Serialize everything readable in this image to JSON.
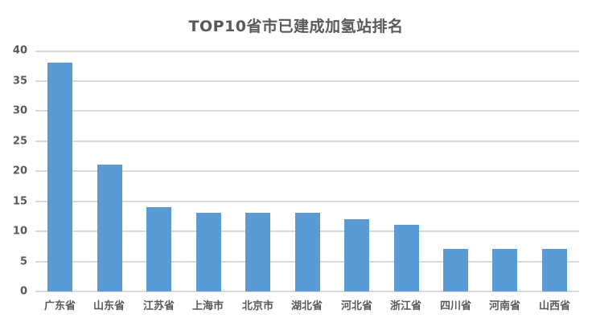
{
  "chart_data": {
    "type": "bar",
    "title": "TOP10省市已建成加氢站排名",
    "categories": [
      "广东省",
      "山东省",
      "江苏省",
      "上海市",
      "北京市",
      "湖北省",
      "河北省",
      "浙江省",
      "四川省",
      "河南省",
      "山西省"
    ],
    "values": [
      38,
      21,
      14,
      13,
      13,
      13,
      12,
      11,
      7,
      7,
      7
    ],
    "xlabel": "",
    "ylabel": "",
    "ylim": [
      0,
      40
    ],
    "ytick_step": 5,
    "ytick_labels": [
      "0",
      "5",
      "10",
      "15",
      "20",
      "25",
      "30",
      "35",
      "40"
    ],
    "grid": true,
    "legend": "none",
    "colors": {
      "bar": "#5B9BD5",
      "gridline": "#D9D9D9",
      "text": "#595959",
      "background": "#FFFFFF"
    }
  }
}
